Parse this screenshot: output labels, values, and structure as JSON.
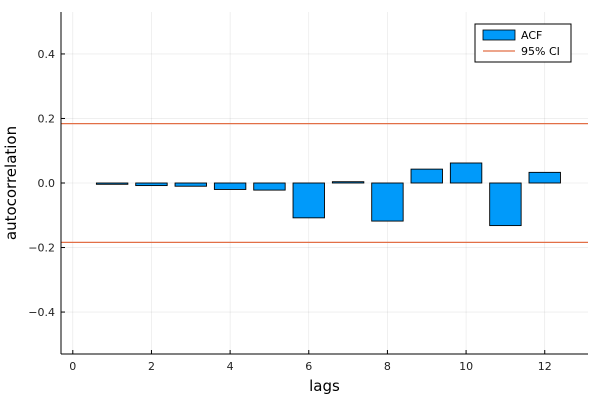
{
  "chart_data": {
    "type": "bar",
    "title": "",
    "xlabel": "lags",
    "ylabel": "autocorrelation",
    "xlim": [
      -0.3,
      13.1
    ],
    "ylim": [
      -0.53,
      0.53
    ],
    "xticks": [
      0,
      2,
      4,
      6,
      8,
      10,
      12
    ],
    "yticks": [
      -0.4,
      -0.2,
      0.0,
      0.2,
      0.4
    ],
    "ytick_labels": [
      "−0.4",
      "−0.2",
      "0.0",
      "0.2",
      "0.4"
    ],
    "grid": true,
    "legend_position": "top-right",
    "series": [
      {
        "name": "ACF",
        "kind": "bar",
        "color": "#009AFA",
        "x": [
          1,
          2,
          3,
          4,
          5,
          6,
          7,
          8,
          9,
          10,
          11,
          12
        ],
        "values": [
          -0.004,
          -0.008,
          -0.01,
          -0.02,
          -0.022,
          -0.108,
          0.004,
          -0.118,
          0.043,
          0.062,
          -0.132,
          0.033
        ],
        "bar_width": 0.8
      },
      {
        "name": "95% CI",
        "kind": "hline",
        "color": "#E26F46",
        "values": [
          0.184,
          -0.184
        ]
      }
    ]
  }
}
